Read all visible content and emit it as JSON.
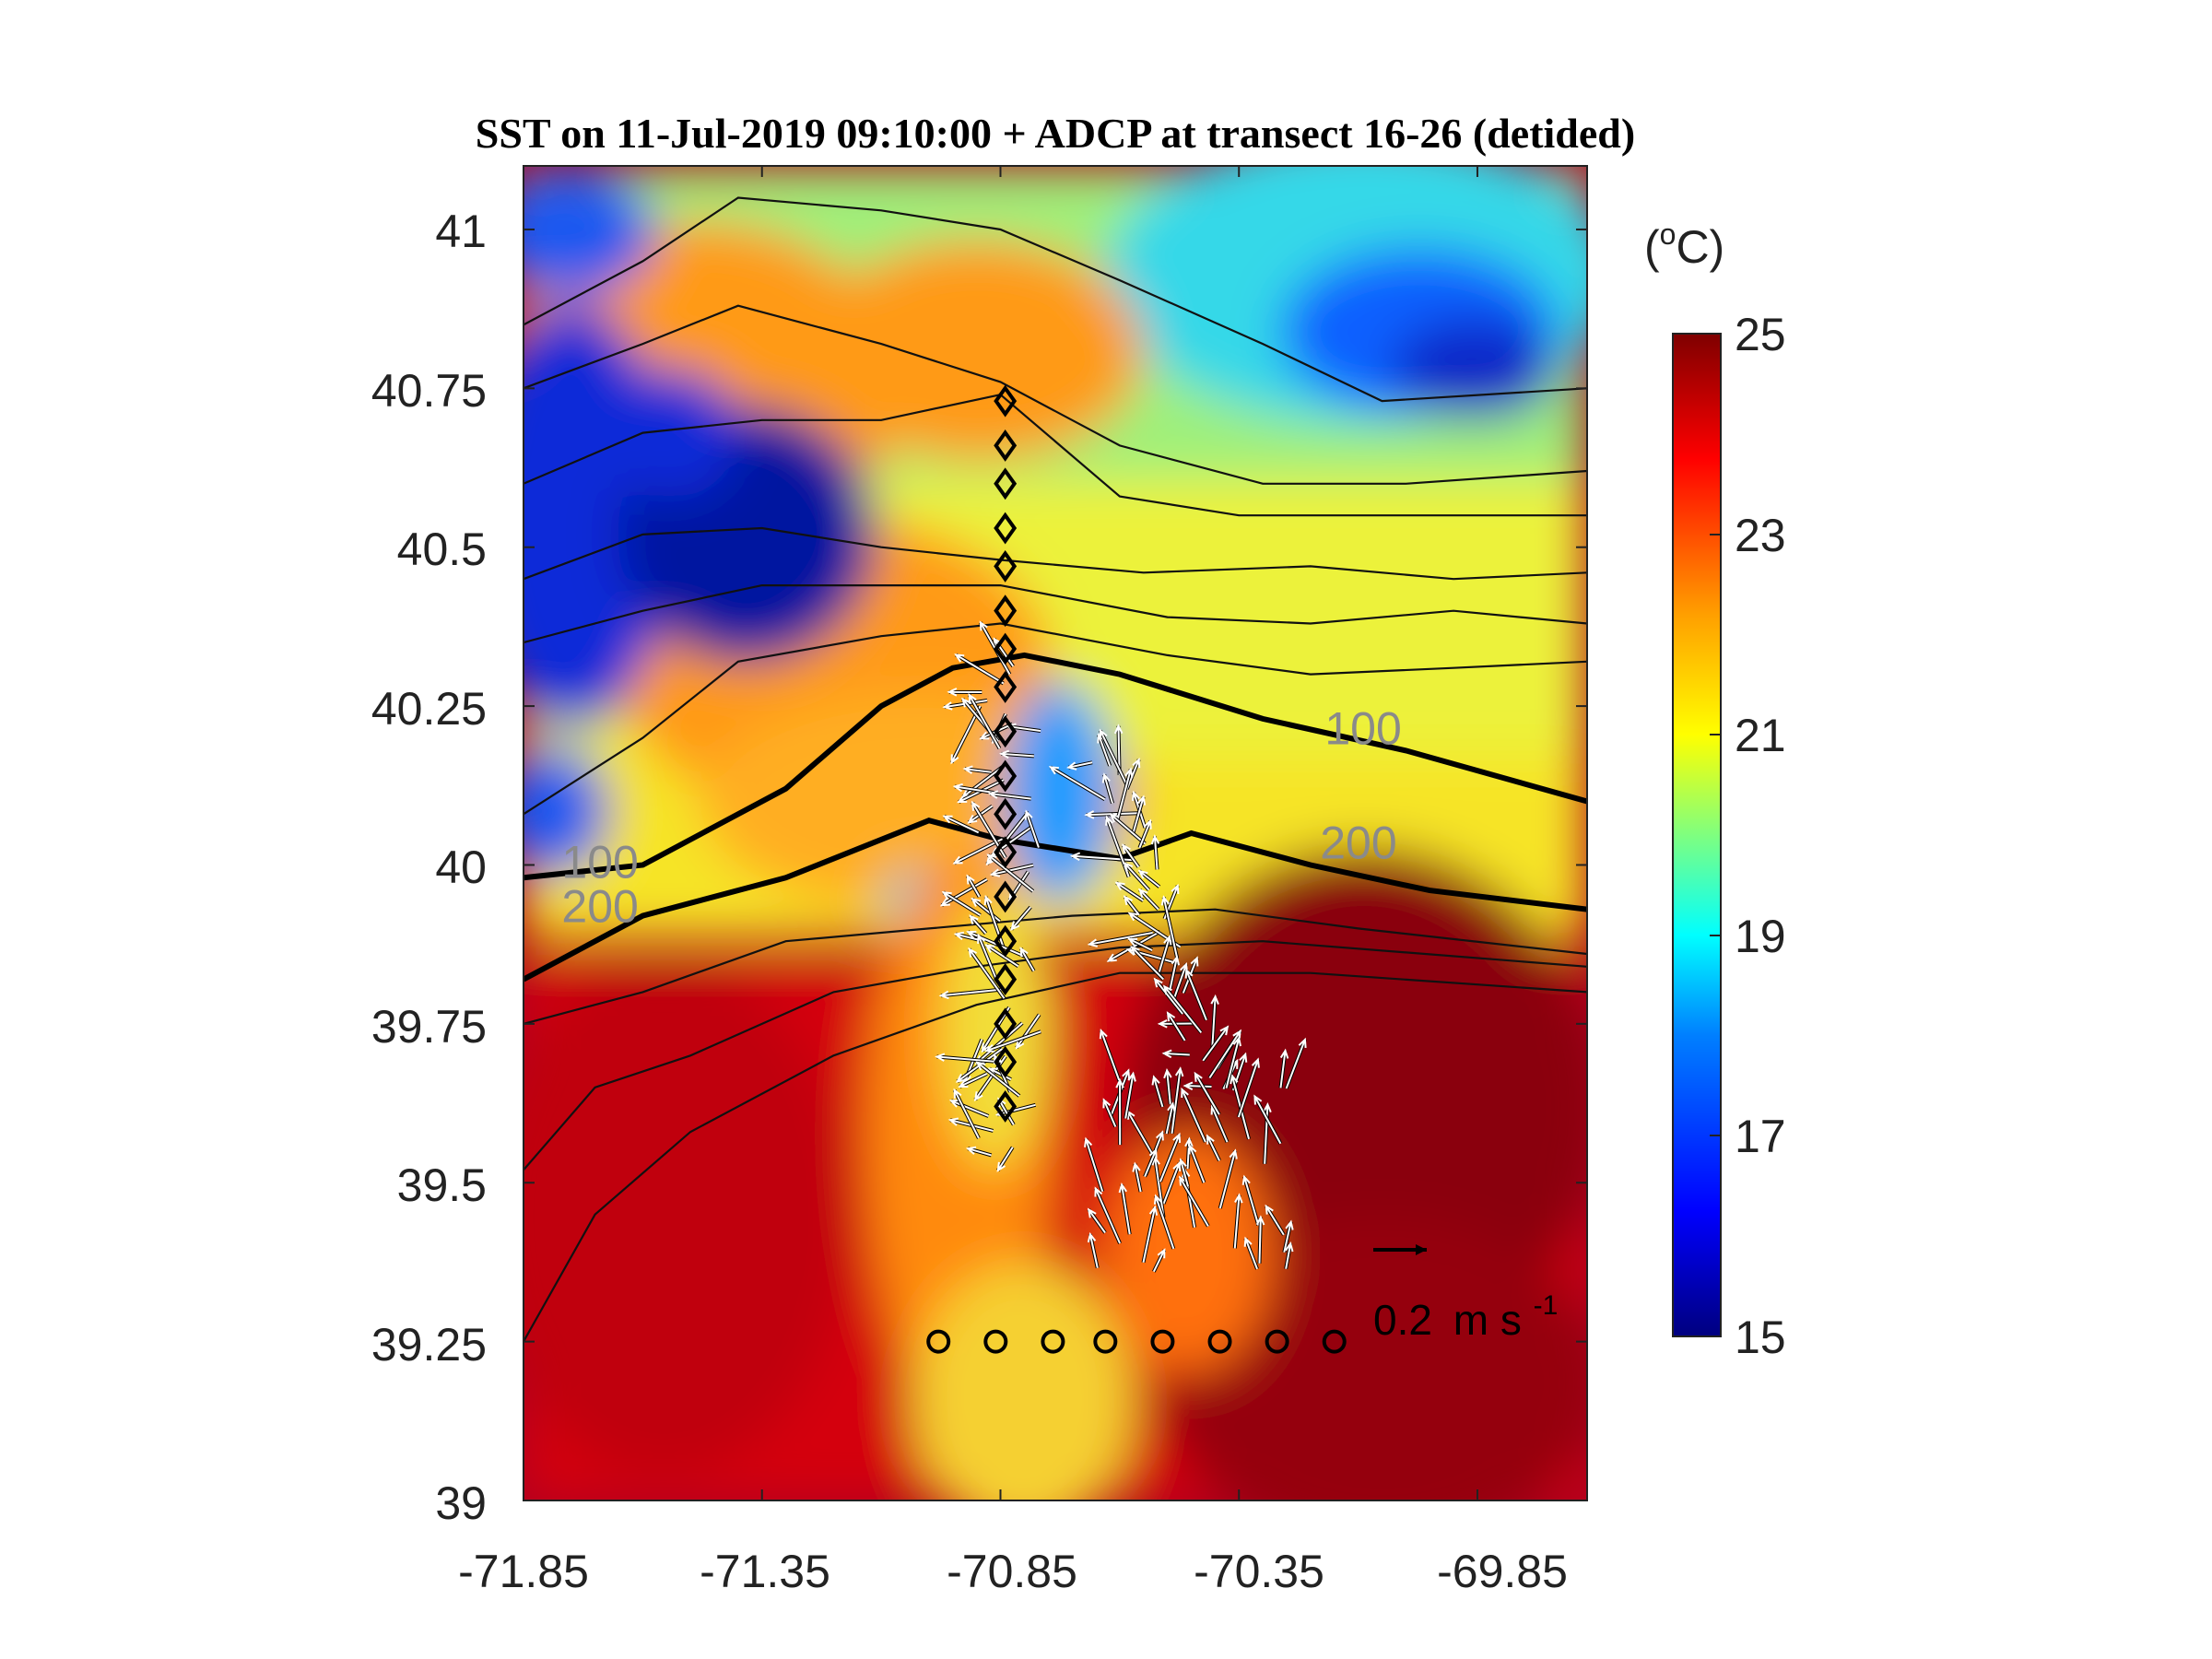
{
  "chart_data": {
    "type": "heatmap",
    "title": "SST on 11-Jul-2019 09:10:00 + ADCP at transect 16-26 (detided)",
    "xlabel": "",
    "ylabel": "",
    "xlim": [
      -71.85,
      -69.62
    ],
    "ylim": [
      39.0,
      41.1
    ],
    "xticks": [
      "-71.85",
      "-71.35",
      "-70.85",
      "-70.35",
      "-69.85"
    ],
    "yticks": [
      "41",
      "40.75",
      "40.5",
      "40.25",
      "40",
      "39.75",
      "39.5",
      "39.25",
      "39"
    ],
    "colorbar": {
      "unit_prefix": "(",
      "unit_sup": "o",
      "unit_suffix": "C)",
      "range": [
        15,
        25
      ],
      "ticks": [
        "25",
        "23",
        "21",
        "19",
        "17",
        "15"
      ],
      "colormap": [
        "#00007f",
        "#0000ff",
        "#007fff",
        "#00ffff",
        "#7fff7f",
        "#ffff00",
        "#ff7f00",
        "#ff0000",
        "#7f0000"
      ]
    },
    "contour_labels": [
      {
        "text": "100",
        "x": -71.77,
        "y": 39.98
      },
      {
        "text": "200",
        "x": -71.77,
        "y": 39.91
      },
      {
        "text": "100",
        "x": -70.17,
        "y": 40.19
      },
      {
        "text": "200",
        "x": -70.18,
        "y": 40.01
      }
    ],
    "isobaths": [
      {
        "depth": 100,
        "points": [
          [
            -71.85,
            39.98
          ],
          [
            -71.6,
            40.0
          ],
          [
            -71.3,
            40.12
          ],
          [
            -71.1,
            40.25
          ],
          [
            -70.95,
            40.31
          ],
          [
            -70.8,
            40.33
          ],
          [
            -70.6,
            40.3
          ],
          [
            -70.3,
            40.23
          ],
          [
            -70.0,
            40.18
          ],
          [
            -69.62,
            40.1
          ]
        ]
      },
      {
        "depth": 200,
        "points": [
          [
            -71.85,
            39.82
          ],
          [
            -71.6,
            39.92
          ],
          [
            -71.3,
            39.98
          ],
          [
            -71.0,
            40.07
          ],
          [
            -70.85,
            40.04
          ],
          [
            -70.6,
            40.01
          ],
          [
            -70.45,
            40.05
          ],
          [
            -70.2,
            40.0
          ],
          [
            -69.95,
            39.96
          ],
          [
            -69.62,
            39.93
          ]
        ]
      }
    ],
    "station_lines": [
      {
        "marker": "diamond",
        "x": -70.84,
        "y": [
          40.73,
          40.66,
          40.6,
          40.53,
          40.47,
          40.4,
          40.34,
          40.28,
          40.21,
          40.14,
          40.08,
          40.02,
          39.95,
          39.88,
          39.82,
          39.75,
          39.69,
          39.62
        ]
      },
      {
        "marker": "circle",
        "y": 39.25,
        "x": [
          -70.98,
          -70.86,
          -70.74,
          -70.63,
          -70.51,
          -70.39,
          -70.27,
          -70.15
        ]
      }
    ],
    "scale_arrow": {
      "label_value": "0.2",
      "label_unit": "m s",
      "label_exp": "-1",
      "x": -70.05,
      "y": 39.42
    }
  }
}
